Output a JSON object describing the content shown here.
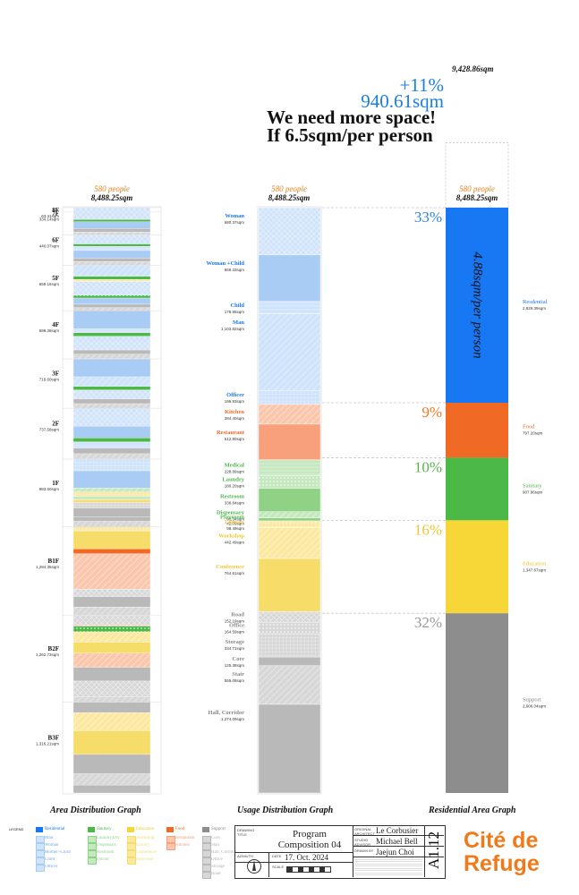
{
  "header": {
    "total_area": "9,428.86sqm",
    "increase_pct": "+11%",
    "increase_area": "940.61sqm",
    "line1": "We need more space!",
    "line2": "If 6.5sqm/per person"
  },
  "colors": {
    "residential": "#1877f2",
    "food": "#f06a25",
    "sanitary": "#4cb848",
    "education": "#f7d637",
    "support": "#8d8d8d",
    "people_orange": "#e8821e",
    "pct_blue": "#2a84e0",
    "pct_orange": "#ef7a22",
    "pct_green": "#55b548",
    "pct_yellow": "#f0c431",
    "pct_gray": "#999999"
  },
  "columns": {
    "area_title": "Area Distribution Graph",
    "usage_title": "Usage Distribution Graph",
    "residential_title": "Residential Area Graph",
    "people": "580 people",
    "area": "8,488.25sqm"
  },
  "chart_data": [
    {
      "type": "bar",
      "title": "Area Distribution Graph",
      "orientation": "stacked-vertical",
      "unit": "sqm",
      "floors": [
        {
          "name": "8F",
          "area": "63.41sqm",
          "value": 63.41
        },
        {
          "name": "7F",
          "area": "334.14sqm",
          "value": 334.14
        },
        {
          "name": "6F",
          "area": "440.07sqm",
          "value": 440.07
        },
        {
          "name": "5F",
          "area": "659.16sqm",
          "value": 659.16
        },
        {
          "name": "4F",
          "area": "699.38sqm",
          "value": 699.38
        },
        {
          "name": "3F",
          "area": "716.60sqm",
          "value": 716.6
        },
        {
          "name": "2F",
          "area": "737.58sqm",
          "value": 737.58
        },
        {
          "name": "1F",
          "area": "983.50sqm",
          "value": 983.5
        },
        {
          "name": "B1F",
          "area": "1,284.35sqm",
          "value": 1284.35
        },
        {
          "name": "B2F",
          "area": "1,262.73sqm",
          "value": 1262.73
        },
        {
          "name": "B3F",
          "area": "1,316.21sqm",
          "value": 1316.21
        }
      ],
      "strips": [
        {
          "floor": "8F",
          "cat": "res_woman",
          "value": 63.41
        },
        {
          "floor": "7F",
          "cat": "res_woman",
          "value": 110
        },
        {
          "floor": "7F",
          "cat": "san_restroom",
          "value": 30
        },
        {
          "floor": "7F",
          "cat": "res_man",
          "value": 100
        },
        {
          "floor": "7F",
          "cat": "sup_core",
          "value": 50
        },
        {
          "floor": "7F",
          "cat": "sup_stair",
          "value": 44.14
        },
        {
          "floor": "6F",
          "cat": "res_woman",
          "value": 130
        },
        {
          "floor": "6F",
          "cat": "san_restroom",
          "value": 35
        },
        {
          "floor": "6F",
          "cat": "res_child",
          "value": 60
        },
        {
          "floor": "6F",
          "cat": "res_man",
          "value": 110
        },
        {
          "floor": "6F",
          "cat": "sup_core",
          "value": 50
        },
        {
          "floor": "6F",
          "cat": "sup_stair",
          "value": 55.07
        },
        {
          "floor": "5F",
          "cat": "res_motherchild",
          "value": 160
        },
        {
          "floor": "5F",
          "cat": "san_restroom",
          "value": 45
        },
        {
          "floor": "5F",
          "cat": "edu_workshop",
          "value": 30
        },
        {
          "floor": "5F",
          "cat": "res_woman",
          "value": 200
        },
        {
          "floor": "5F",
          "cat": "san_laundry",
          "value": 40
        },
        {
          "floor": "5F",
          "cat": "res_man",
          "value": 90
        },
        {
          "floor": "5F",
          "cat": "sup_core",
          "value": 50
        },
        {
          "floor": "5F",
          "cat": "sup_stair",
          "value": 44.16
        },
        {
          "floor": "4F",
          "cat": "res_man",
          "value": 260
        },
        {
          "floor": "4F",
          "cat": "res_child",
          "value": 60
        },
        {
          "floor": "4F",
          "cat": "san_restroom",
          "value": 50
        },
        {
          "floor": "4F",
          "cat": "res_woman",
          "value": 200
        },
        {
          "floor": "4F",
          "cat": "sup_core",
          "value": 60
        },
        {
          "floor": "4F",
          "cat": "sup_stair",
          "value": 69.38
        },
        {
          "floor": "3F",
          "cat": "res_man",
          "value": 260
        },
        {
          "floor": "3F",
          "cat": "res_motherchild",
          "value": 140
        },
        {
          "floor": "3F",
          "cat": "san_restroom",
          "value": 50
        },
        {
          "floor": "3F",
          "cat": "res_woman",
          "value": 130
        },
        {
          "floor": "3F",
          "cat": "sup_core",
          "value": 70
        },
        {
          "floor": "3F",
          "cat": "sup_stair",
          "value": 66.6
        },
        {
          "floor": "2F",
          "cat": "res_woman",
          "value": 260
        },
        {
          "floor": "2F",
          "cat": "res_man",
          "value": 170
        },
        {
          "floor": "2F",
          "cat": "san_restroom",
          "value": 60
        },
        {
          "floor": "2F",
          "cat": "res_child",
          "value": 90
        },
        {
          "floor": "2F",
          "cat": "sup_core",
          "value": 80
        },
        {
          "floor": "2F",
          "cat": "sup_stair",
          "value": 77.58
        },
        {
          "floor": "1F",
          "cat": "res_officer",
          "value": 170
        },
        {
          "floor": "1F",
          "cat": "res_man",
          "value": 250
        },
        {
          "floor": "1F",
          "cat": "san_dispensary",
          "value": 60
        },
        {
          "floor": "1F",
          "cat": "edu_library",
          "value": 60
        },
        {
          "floor": "1F",
          "cat": "san_medical",
          "value": 50
        },
        {
          "floor": "1F",
          "cat": "edu_playroom",
          "value": 40
        },
        {
          "floor": "1F",
          "cat": "sup_office",
          "value": 80
        },
        {
          "floor": "1F",
          "cat": "sup_hall",
          "value": 130
        },
        {
          "floor": "1F",
          "cat": "sup_core",
          "value": 63.5
        },
        {
          "floor": "1F",
          "cat": "sup_stair",
          "value": 80
        },
        {
          "floor": "B1F",
          "cat": "edu_library",
          "value": 60
        },
        {
          "floor": "B1F",
          "cat": "edu_conference",
          "value": 260
        },
        {
          "floor": "B1F",
          "cat": "food_kitchen",
          "value": 70
        },
        {
          "floor": "B1F",
          "cat": "food_restaurant",
          "value": 512.8
        },
        {
          "floor": "B1F",
          "cat": "sup_storage",
          "value": 110
        },
        {
          "floor": "B1F",
          "cat": "sup_hall",
          "value": 150
        },
        {
          "floor": "B1F",
          "cat": "sup_stair",
          "value": 121.55
        },
        {
          "floor": "B2F",
          "cat": "sup_road",
          "value": 150
        },
        {
          "floor": "B2F",
          "cat": "food_kitchen",
          "value": 10
        },
        {
          "floor": "B2F",
          "cat": "san_laundry",
          "value": 80
        },
        {
          "floor": "B2F",
          "cat": "edu_workshop",
          "value": 150
        },
        {
          "floor": "B2F",
          "cat": "edu_conference",
          "value": 160
        },
        {
          "floor": "B2F",
          "cat": "food_kitchen_b",
          "value": 204.4
        },
        {
          "floor": "B2F",
          "cat": "sup_hall",
          "value": 200
        },
        {
          "floor": "B2F",
          "cat": "sup_storage",
          "value": 224.71
        },
        {
          "floor": "B2F",
          "cat": "sup_stair",
          "value": 83.62
        },
        {
          "floor": "B3F",
          "cat": "sup_hall",
          "value": 150
        },
        {
          "floor": "B3F",
          "cat": "edu_workshop",
          "value": 262.49
        },
        {
          "floor": "B3F",
          "cat": "edu_conference",
          "value": 344.61
        },
        {
          "floor": "B3F",
          "cat": "sup_hall",
          "value": 280
        },
        {
          "floor": "B3F",
          "cat": "sup_stair",
          "value": 164.11
        },
        {
          "floor": "B3F",
          "cat": "sup_hall",
          "value": 115
        }
      ]
    },
    {
      "type": "bar",
      "title": "Usage Distribution Graph",
      "orientation": "stacked-vertical",
      "unit": "sqm",
      "segments": [
        {
          "name": "Woman",
          "area": "680.37sqm",
          "value": 680.37,
          "group": "residential",
          "pattern": "cross"
        },
        {
          "name": "Woman +Child",
          "area": "669.33sqm",
          "value": 669.33,
          "group": "residential",
          "pattern": "solid"
        },
        {
          "name": "Child",
          "area": "178.95sqm",
          "value": 178.95,
          "group": "residential",
          "pattern": "lines"
        },
        {
          "name": "Man",
          "area": "1,103.82sqm",
          "value": 1103.82,
          "group": "residential",
          "pattern": "diag"
        },
        {
          "name": "Officer",
          "area": "196.93sqm",
          "value": 196.93,
          "group": "residential",
          "pattern": "grid"
        },
        {
          "name": "Kitchen",
          "area": "284.40sqm",
          "value": 284.4,
          "group": "food",
          "pattern": "diag"
        },
        {
          "name": "Restaurant",
          "area": "512.80sqm",
          "value": 512.8,
          "group": "food",
          "pattern": "solid"
        },
        {
          "name": "Medical",
          "area": "228.89sqm",
          "value": 228.89,
          "group": "sanitary",
          "pattern": "lines"
        },
        {
          "name": "Laundry",
          "area": "180.20sqm",
          "value": 180.2,
          "group": "sanitary",
          "pattern": "dots"
        },
        {
          "name": "Restroom",
          "area": "336.84sqm",
          "value": 336.84,
          "group": "sanitary",
          "pattern": "solid"
        },
        {
          "name": "Dispensary",
          "area": "90.34sqm",
          "value": 90.34,
          "group": "sanitary",
          "pattern": "diag"
        },
        {
          "name": "Playroom",
          "area": "42.09sqm",
          "value": 42.09,
          "group": "sanitary",
          "pattern": "solid"
        },
        {
          "name": "Library",
          "area": "98.49sqm",
          "value": 98.49,
          "group": "education",
          "pattern": "grid"
        },
        {
          "name": "Workshop",
          "area": "442.49sqm",
          "value": 442.49,
          "group": "education",
          "pattern": "diag"
        },
        {
          "name": "Conference",
          "area": "764.61sqm",
          "value": 764.61,
          "group": "education",
          "pattern": "solid"
        },
        {
          "name": "Road",
          "area": "152.19sqm",
          "value": 152.19,
          "group": "support",
          "pattern": "cross"
        },
        {
          "name": "Office",
          "area": "164.59sqm",
          "value": 164.59,
          "group": "support",
          "pattern": "dots"
        },
        {
          "name": "Storage",
          "area": "334.71sqm",
          "value": 334.71,
          "group": "support",
          "pattern": "grid"
        },
        {
          "name": "Core",
          "area": "125.38sqm",
          "value": 125.38,
          "group": "support",
          "pattern": "solid"
        },
        {
          "name": "Stair",
          "area": "555.08sqm",
          "value": 555.08,
          "group": "support",
          "pattern": "diag"
        },
        {
          "name": "Hall, Corridor",
          "area": "1,274.09sqm",
          "value": 1274.09,
          "group": "support",
          "pattern": "solid"
        }
      ]
    },
    {
      "type": "bar",
      "title": "Residential Area Graph",
      "orientation": "stacked-vertical",
      "unit": "sqm",
      "extra": {
        "label": "9,428.86sqm",
        "value": 940.61
      },
      "inner_label": "4.88sqm/per person",
      "segments": [
        {
          "name": "Resdential",
          "area": "2,829.39sqm",
          "value": 2829.39,
          "pct": "33%",
          "group": "residential"
        },
        {
          "name": "Food",
          "area": "797.20sqm",
          "value": 797.2,
          "pct": "9%",
          "group": "food"
        },
        {
          "name": "Sanitary",
          "area": "907.96sqm",
          "value": 907.96,
          "pct": "10%",
          "group": "sanitary"
        },
        {
          "name": "Education",
          "area": "1,347.67sqm",
          "value": 1347.67,
          "pct": "16%",
          "group": "education"
        },
        {
          "name": "Support",
          "area": "2,606.04sqm",
          "value": 2606.04,
          "pct": "32%",
          "group": "support"
        }
      ]
    }
  ],
  "legend": {
    "label": "LEGEND",
    "groups": [
      {
        "title": "Residential",
        "group": "residential",
        "items": [
          "Man",
          "Woman",
          "Mother+Child",
          "Child",
          "Officer"
        ]
      },
      {
        "title": "Sanitary",
        "group": "sanitary",
        "items": [
          "Laundry,Dry",
          "Dispensary",
          "Restroom",
          "Doctor"
        ]
      },
      {
        "title": "Education",
        "group": "education",
        "items": [
          "Workshop",
          "Library",
          "Conference",
          "Playroom"
        ]
      },
      {
        "title": "Food",
        "group": "food",
        "items": [
          "Restaurant",
          "Kitchen"
        ]
      },
      {
        "title": "Support",
        "group": "support",
        "items": [
          "Core",
          "Stair",
          "Hall, Corridor",
          "Office",
          "Storage",
          "Road"
        ]
      }
    ]
  },
  "title_block": {
    "drawing_title_label": "DRAWING TITLE",
    "drawing_title": "Program Composition 04",
    "date_label": "DATE",
    "date": "17. Oct. 2024",
    "azimuth_label": "AZIMUTH",
    "scale_label": "SCALE",
    "architect_label": "ORIGINAL ARCHITECT",
    "architect": "Le Corbusier",
    "advisor_label": "STUDIO ADVISOR",
    "advisor": "Michael Bell",
    "drawn_label": "DRAWN BY",
    "drawn": "Jaejun Choi",
    "sheet": "A1.12",
    "project_line1": "Cité de",
    "project_line2": "Refuge"
  }
}
